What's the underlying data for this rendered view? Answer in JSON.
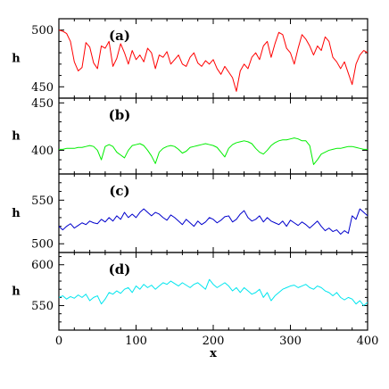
{
  "chart_data": [
    {
      "type": "line",
      "panel_label": "(a)",
      "xlabel": "x",
      "ylabel": "h",
      "xlim": [
        0,
        400
      ],
      "ylim": [
        440,
        510
      ],
      "yticks": [
        450,
        500
      ],
      "xticks": [
        0,
        100,
        200,
        300,
        400
      ],
      "color": "#ff0000",
      "series": [
        {
          "x": [
            0,
            5,
            10,
            15,
            20,
            25,
            30,
            35,
            40,
            45,
            50,
            55,
            60,
            65,
            70,
            75,
            80,
            85,
            90,
            95,
            100,
            105,
            110,
            115,
            120,
            125,
            130,
            135,
            140,
            145,
            150,
            155,
            160,
            165,
            170,
            175,
            180,
            185,
            190,
            195,
            200,
            205,
            210,
            215,
            220,
            225,
            230,
            235,
            240,
            245,
            250,
            255,
            260,
            265,
            270,
            275,
            280,
            285,
            290,
            295,
            300,
            305,
            310,
            315,
            320,
            325,
            330,
            335,
            340,
            345,
            350,
            355,
            360,
            365,
            370,
            375,
            380,
            385,
            390,
            395,
            400
          ],
          "y": [
            500,
            499,
            497,
            490,
            472,
            464,
            467,
            489,
            485,
            471,
            466,
            486,
            484,
            490,
            468,
            475,
            488,
            480,
            470,
            482,
            474,
            478,
            472,
            484,
            480,
            466,
            478,
            476,
            481,
            470,
            474,
            478,
            470,
            468,
            476,
            480,
            471,
            468,
            473,
            470,
            474,
            466,
            461,
            468,
            463,
            458,
            446,
            464,
            470,
            466,
            476,
            480,
            474,
            486,
            490,
            476,
            488,
            498,
            496,
            484,
            480,
            470,
            484,
            496,
            492,
            486,
            478,
            486,
            482,
            494,
            490,
            476,
            472,
            466,
            472,
            462,
            452,
            470,
            478,
            482,
            480
          ]
        }
      ]
    },
    {
      "type": "line",
      "panel_label": "(b)",
      "xlabel": "x",
      "ylabel": "h",
      "xlim": [
        0,
        400
      ],
      "ylim": [
        375,
        455
      ],
      "yticks": [
        400,
        450
      ],
      "xticks": [
        0,
        100,
        200,
        300,
        400
      ],
      "color": "#00ee00",
      "series": [
        {
          "x": [
            0,
            5,
            10,
            15,
            20,
            25,
            30,
            35,
            40,
            45,
            50,
            55,
            60,
            65,
            70,
            75,
            80,
            85,
            90,
            95,
            100,
            105,
            110,
            115,
            120,
            125,
            130,
            135,
            140,
            145,
            150,
            155,
            160,
            165,
            170,
            175,
            180,
            185,
            190,
            195,
            200,
            205,
            210,
            215,
            220,
            225,
            230,
            235,
            240,
            245,
            250,
            255,
            260,
            265,
            270,
            275,
            280,
            285,
            290,
            295,
            300,
            305,
            310,
            315,
            320,
            325,
            330,
            335,
            340,
            345,
            350,
            355,
            360,
            365,
            370,
            375,
            380,
            385,
            390,
            395,
            400
          ],
          "y": [
            401,
            401,
            402,
            402,
            402,
            403,
            403,
            404,
            405,
            404,
            400,
            390,
            404,
            406,
            404,
            398,
            395,
            392,
            400,
            405,
            406,
            407,
            405,
            400,
            394,
            386,
            398,
            402,
            404,
            405,
            404,
            401,
            397,
            399,
            403,
            404,
            405,
            406,
            407,
            406,
            405,
            403,
            398,
            393,
            402,
            406,
            408,
            409,
            410,
            409,
            407,
            402,
            398,
            396,
            400,
            405,
            408,
            410,
            411,
            411,
            412,
            413,
            412,
            410,
            410,
            405,
            385,
            390,
            396,
            398,
            400,
            401,
            402,
            402,
            403,
            404,
            404,
            403,
            402,
            401,
            401
          ]
        }
      ]
    },
    {
      "type": "line",
      "panel_label": "(c)",
      "xlabel": "x",
      "ylabel": "h",
      "xlim": [
        0,
        400
      ],
      "ylim": [
        490,
        580
      ],
      "yticks": [
        500,
        550
      ],
      "xticks": [
        0,
        100,
        200,
        300,
        400
      ],
      "color": "#0000cc",
      "series": [
        {
          "x": [
            0,
            5,
            10,
            15,
            20,
            25,
            30,
            35,
            40,
            45,
            50,
            55,
            60,
            65,
            70,
            75,
            80,
            85,
            90,
            95,
            100,
            105,
            110,
            115,
            120,
            125,
            130,
            135,
            140,
            145,
            150,
            155,
            160,
            165,
            170,
            175,
            180,
            185,
            190,
            195,
            200,
            205,
            210,
            215,
            220,
            225,
            230,
            235,
            240,
            245,
            250,
            255,
            260,
            265,
            270,
            275,
            280,
            285,
            290,
            295,
            300,
            305,
            310,
            315,
            320,
            325,
            330,
            335,
            340,
            345,
            350,
            355,
            360,
            365,
            370,
            375,
            380,
            385,
            390,
            395,
            400
          ],
          "y": [
            520,
            516,
            520,
            523,
            518,
            521,
            524,
            522,
            526,
            524,
            523,
            528,
            525,
            530,
            526,
            532,
            528,
            536,
            530,
            534,
            530,
            536,
            540,
            536,
            532,
            536,
            534,
            530,
            527,
            533,
            530,
            526,
            522,
            528,
            524,
            520,
            526,
            522,
            525,
            530,
            528,
            524,
            527,
            531,
            532,
            525,
            528,
            534,
            538,
            530,
            526,
            528,
            532,
            525,
            530,
            526,
            524,
            522,
            526,
            520,
            527,
            524,
            521,
            525,
            522,
            518,
            522,
            526,
            520,
            515,
            518,
            514,
            516,
            511,
            515,
            512,
            532,
            528,
            540,
            536,
            532
          ]
        }
      ]
    },
    {
      "type": "line",
      "panel_label": "(d)",
      "xlabel": "x",
      "ylabel": "h",
      "xlim": [
        0,
        400
      ],
      "ylim": [
        520,
        615
      ],
      "yticks": [
        550,
        600
      ],
      "xticks": [
        0,
        100,
        200,
        300,
        400
      ],
      "color": "#00e5ee",
      "series": [
        {
          "x": [
            0,
            5,
            10,
            15,
            20,
            25,
            30,
            35,
            40,
            45,
            50,
            55,
            60,
            65,
            70,
            75,
            80,
            85,
            90,
            95,
            100,
            105,
            110,
            115,
            120,
            125,
            130,
            135,
            140,
            145,
            150,
            155,
            160,
            165,
            170,
            175,
            180,
            185,
            190,
            195,
            200,
            205,
            210,
            215,
            220,
            225,
            230,
            235,
            240,
            245,
            250,
            255,
            260,
            265,
            270,
            275,
            280,
            285,
            290,
            295,
            300,
            305,
            310,
            315,
            320,
            325,
            330,
            335,
            340,
            345,
            350,
            355,
            360,
            365,
            370,
            375,
            380,
            385,
            390,
            395,
            400
          ],
          "y": [
            560,
            562,
            558,
            561,
            559,
            563,
            560,
            564,
            556,
            560,
            562,
            552,
            558,
            566,
            564,
            568,
            565,
            570,
            572,
            566,
            574,
            570,
            576,
            572,
            575,
            570,
            574,
            578,
            576,
            580,
            577,
            574,
            578,
            575,
            572,
            576,
            578,
            574,
            570,
            582,
            576,
            572,
            575,
            578,
            574,
            568,
            572,
            566,
            572,
            568,
            564,
            566,
            570,
            560,
            566,
            556,
            562,
            566,
            570,
            572,
            574,
            575,
            572,
            574,
            576,
            572,
            570,
            574,
            572,
            568,
            566,
            562,
            566,
            560,
            557,
            560,
            558,
            552,
            556,
            550,
            554
          ]
        }
      ]
    }
  ]
}
